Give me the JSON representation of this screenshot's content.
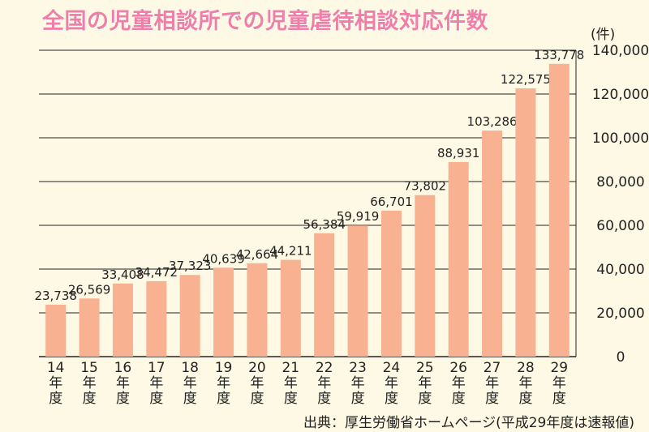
{
  "title": "全国の児童相談所での児童虐待相談対応件数",
  "unit_label": "(件)",
  "source": "出典：厚生労働省ホームページ(平成29年度は速報値)",
  "colors": {
    "bar": "#f8b191",
    "grid": "#222222",
    "title": "#f07fa8",
    "background": "#fef9e4"
  },
  "chart_data": {
    "type": "bar",
    "title": "全国の児童相談所での児童虐待相談対応件数",
    "ylabel": "(件)",
    "xlabel": "",
    "ylim": [
      0,
      140000
    ],
    "yticks": [
      0,
      20000,
      40000,
      60000,
      80000,
      100000,
      120000,
      140000
    ],
    "ytick_labels": [
      "0",
      "20,000",
      "40,000",
      "60,000",
      "80,000",
      "100,000",
      "120,000",
      "140,000"
    ],
    "y_axis_position": "right",
    "grid": true,
    "categories": [
      "14",
      "15",
      "16",
      "17",
      "18",
      "19",
      "20",
      "21",
      "22",
      "23",
      "24",
      "25",
      "26",
      "27",
      "28",
      "29"
    ],
    "category_suffix": [
      "年",
      "度"
    ],
    "values": [
      23738,
      26569,
      33408,
      34472,
      37323,
      40639,
      42664,
      44211,
      56384,
      59919,
      66701,
      73802,
      88931,
      103286,
      122575,
      133778
    ],
    "value_labels": [
      "23,738",
      "26,569",
      "33,408",
      "34,472",
      "37,323",
      "40,639",
      "42,664",
      "44,211",
      "56,384",
      "59,919",
      "66,701",
      "73,802",
      "88,931",
      "103,286",
      "122,575",
      "133,778"
    ]
  }
}
